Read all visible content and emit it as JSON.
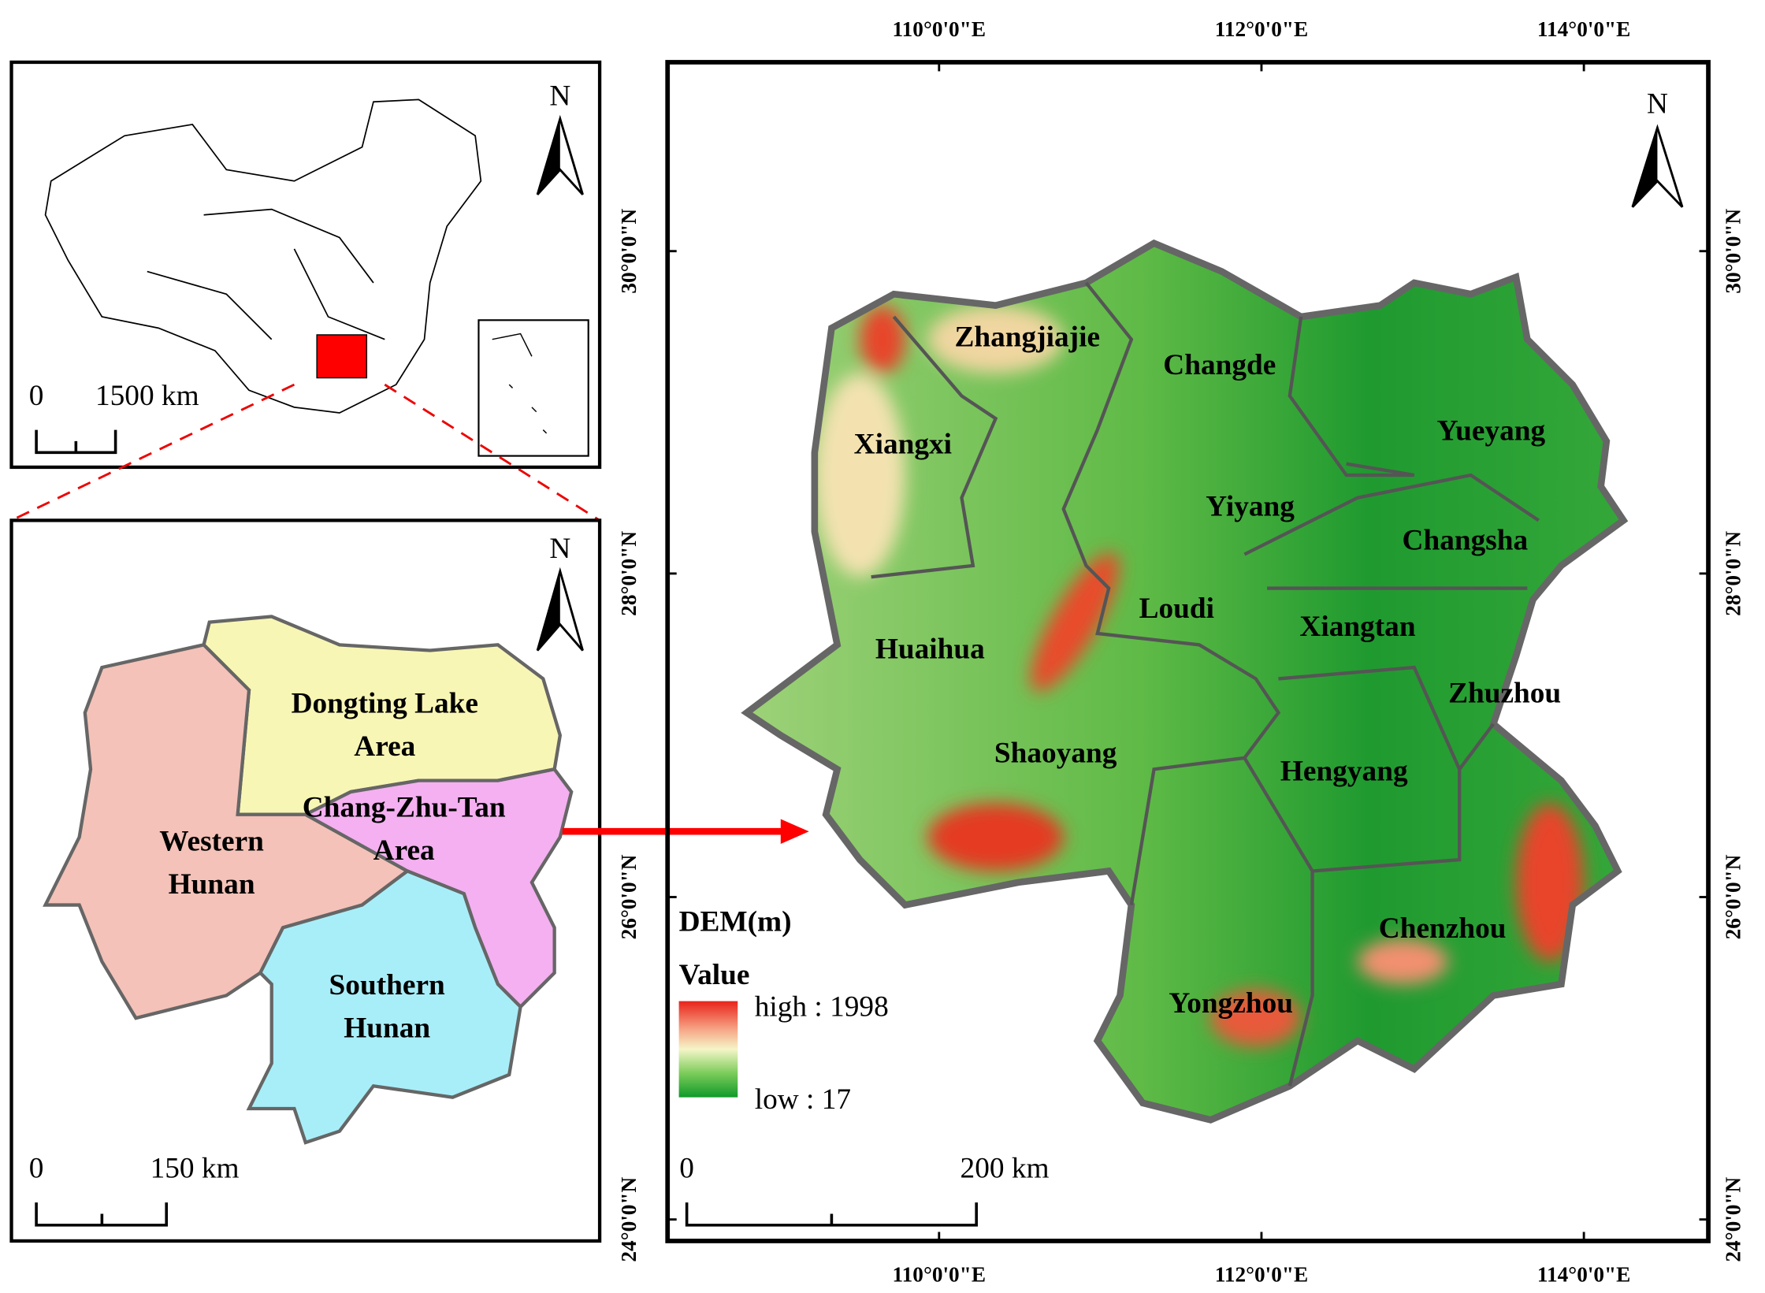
{
  "inset_china": {
    "north": "N",
    "scale": {
      "zero": "0",
      "label": "1500 km"
    }
  },
  "inset_regions": {
    "north": "N",
    "scale": {
      "zero": "0",
      "label": "150 km"
    },
    "regions": [
      {
        "lines": [
          "Dongting Lake",
          "Area"
        ]
      },
      {
        "lines": [
          "Chang-Zhu-Tan",
          "Area"
        ]
      },
      {
        "lines": [
          "Western",
          "Hunan"
        ]
      },
      {
        "lines": [
          "Southern",
          "Hunan"
        ]
      }
    ]
  },
  "main_map": {
    "north": "N",
    "lon_labels": [
      "110°0'0\"E",
      "112°0'0\"E",
      "114°0'0\"E"
    ],
    "lat_labels": [
      "30°0'0\"N",
      "28°0'0\"N",
      "26°0'0\"N",
      "24°0'0\"N"
    ],
    "cities": [
      "Zhangjiajie",
      "Changde",
      "Xiangxi",
      "Yueyang",
      "Yiyang",
      "Changsha",
      "Loudi",
      "Xiangtan",
      "Huaihua",
      "Zhuzhou",
      "Shaoyang",
      "Hengyang",
      "Chenzhou",
      "Yongzhou"
    ],
    "legend": {
      "title": "DEM(m)",
      "subtitle": "Value",
      "high": "high : 1998",
      "low": "low : 17"
    },
    "scale": {
      "zero": "0",
      "label": "200 km"
    }
  }
}
